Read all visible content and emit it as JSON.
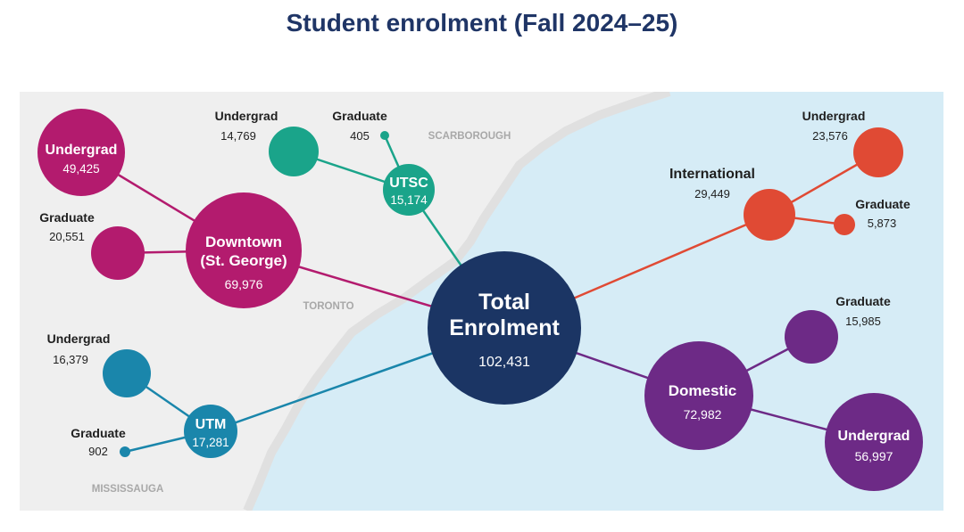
{
  "title": "Student enrolment (Fall 2024–25)",
  "map_labels": {
    "scarborough": "SCARBOROUGH",
    "toronto": "TORONTO",
    "mississauga": "MISSISSAUGA"
  },
  "colors": {
    "total": "#1b3564",
    "downtown": "#b31b6e",
    "utsc": "#1aa48a",
    "utm": "#1a86ab",
    "international": "#e04a34",
    "domestic": "#6d2a86",
    "land": "#efefef",
    "water": "#d6ecf6"
  },
  "center": {
    "line1": "Total",
    "line2": "Enrolment",
    "value": "102,431"
  },
  "downtown": {
    "line1": "Downtown",
    "line2": "(St. George)",
    "value": "69,976",
    "undergrad": {
      "label": "Undergrad",
      "value": "49,425"
    },
    "graduate": {
      "label": "Graduate",
      "value": "20,551"
    }
  },
  "utsc": {
    "label": "UTSC",
    "value": "15,174",
    "undergrad": {
      "label": "Undergrad",
      "value": "14,769"
    },
    "graduate": {
      "label": "Graduate",
      "value": "405"
    }
  },
  "utm": {
    "label": "UTM",
    "value": "17,281",
    "undergrad": {
      "label": "Undergrad",
      "value": "16,379"
    },
    "graduate": {
      "label": "Graduate",
      "value": "902"
    }
  },
  "international": {
    "label": "International",
    "value": "29,449",
    "undergrad": {
      "label": "Undergrad",
      "value": "23,576"
    },
    "graduate": {
      "label": "Graduate",
      "value": "5,873"
    }
  },
  "domestic": {
    "label": "Domestic",
    "value": "72,982",
    "undergrad": {
      "label": "Undergrad",
      "value": "56,997"
    },
    "graduate": {
      "label": "Graduate",
      "value": "15,985"
    }
  }
}
